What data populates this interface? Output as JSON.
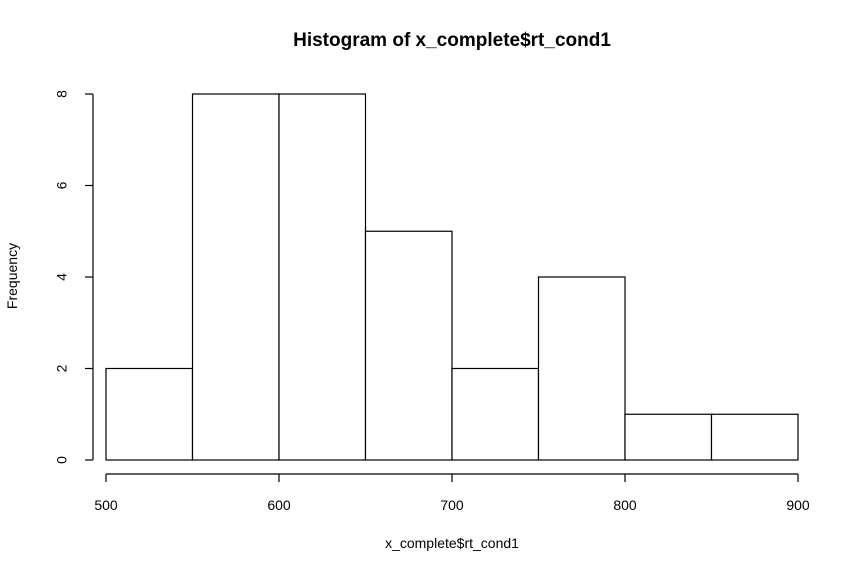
{
  "chart_data": {
    "type": "bar",
    "title": "Histogram of x_complete$rt_cond1",
    "xlabel": "x_complete$rt_cond1",
    "ylabel": "Frequency",
    "bins": [
      {
        "start": 500,
        "end": 550,
        "count": 2
      },
      {
        "start": 550,
        "end": 600,
        "count": 8
      },
      {
        "start": 600,
        "end": 650,
        "count": 8
      },
      {
        "start": 650,
        "end": 700,
        "count": 5
      },
      {
        "start": 700,
        "end": 750,
        "count": 2
      },
      {
        "start": 750,
        "end": 800,
        "count": 4
      },
      {
        "start": 800,
        "end": 850,
        "count": 1
      },
      {
        "start": 850,
        "end": 900,
        "count": 1
      }
    ],
    "xlim": [
      500,
      900
    ],
    "ylim": [
      0,
      8
    ],
    "xticks": [
      "500",
      "600",
      "700",
      "800",
      "900"
    ],
    "yticks": [
      "0",
      "2",
      "4",
      "6",
      "8"
    ],
    "grid": false,
    "legend": "none",
    "colors": {
      "bar_fill": "#ffffff",
      "bar_stroke": "#000000",
      "background": "#ffffff"
    }
  }
}
